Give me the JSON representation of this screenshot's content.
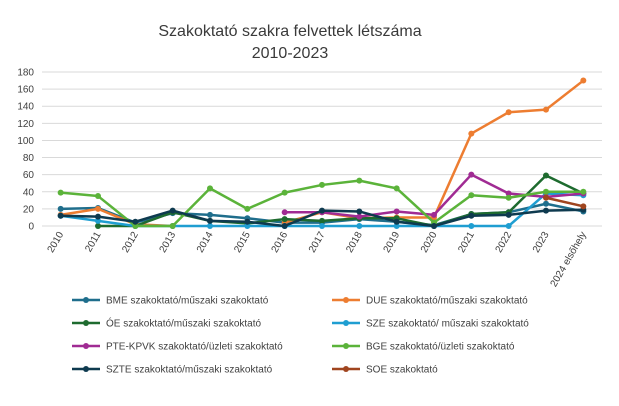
{
  "chart_data": {
    "type": "line",
    "title_lines": [
      "Szakoktató szakra felvettek létszáma",
      "2010-2023"
    ],
    "xlabel": "",
    "ylabel": "",
    "ylim": [
      0,
      180
    ],
    "yticks": [
      0,
      20,
      40,
      60,
      80,
      100,
      120,
      140,
      160,
      180
    ],
    "grid": true,
    "legend_position": "bottom",
    "categories": [
      "2010",
      "2011",
      "2012",
      "2013",
      "2014",
      "2015",
      "2016",
      "2017",
      "2018",
      "2019",
      "2020",
      "2021",
      "2022",
      "2023",
      "2024 elsőhely"
    ],
    "series": [
      {
        "name": "BME szakoktató/műszaki szakoktató",
        "color": "#1F6E8C",
        "values": [
          20,
          21,
          4,
          15,
          13,
          9,
          4,
          4,
          8,
          5,
          1,
          14,
          16,
          26,
          17
        ]
      },
      {
        "name": "DUE  szakoktató/műszaki szakoktató",
        "color": "#ED7D31",
        "values": [
          13,
          20,
          2,
          0,
          null,
          null,
          4,
          16,
          9,
          10,
          10,
          108,
          133,
          136,
          170
        ]
      },
      {
        "name": "ÓE szakoktató/műszaki szakoktató",
        "color": "#1E6B2F",
        "values": [
          null,
          0,
          0,
          16,
          6,
          3,
          8,
          6,
          9,
          9,
          0,
          14,
          16,
          59,
          38
        ]
      },
      {
        "name": "SZE szakoktató/ műszaki szakoktató",
        "color": "#1F9ED1",
        "values": [
          12,
          6,
          0,
          0,
          0,
          0,
          0,
          0,
          0,
          0,
          0,
          0,
          0,
          38,
          36
        ]
      },
      {
        "name": "PTE-KPVK szakoktató/üzleti szakoktató",
        "color": "#A02B93",
        "values": [
          null,
          null,
          null,
          null,
          null,
          null,
          16,
          16,
          11,
          17,
          13,
          60,
          38,
          34,
          38
        ]
      },
      {
        "name": "BGE szakoktató/üzleti szakoktató",
        "color": "#5BB33A",
        "values": [
          39,
          35,
          0,
          0,
          44,
          20,
          39,
          48,
          53,
          44,
          4,
          36,
          33,
          40,
          40
        ]
      },
      {
        "name": "SZTE szakoktató/műszaki szakoktató",
        "color": "#0E3A4F",
        "values": [
          12,
          11,
          5,
          18,
          6,
          5,
          0,
          18,
          17,
          5,
          0,
          12,
          13,
          18,
          19
        ]
      },
      {
        "name": "SOE szakoktató",
        "color": "#A0451F",
        "values": [
          null,
          null,
          null,
          null,
          null,
          null,
          null,
          null,
          null,
          null,
          null,
          null,
          null,
          33,
          23
        ]
      }
    ]
  }
}
